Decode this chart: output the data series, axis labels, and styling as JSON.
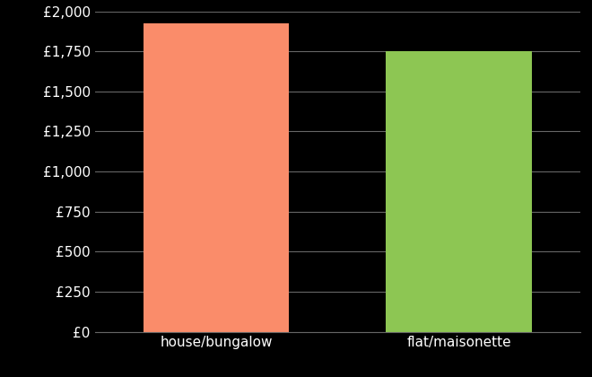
{
  "categories": [
    "house/bungalow",
    "flat/maisonette"
  ],
  "values": [
    1925,
    1750
  ],
  "bar_colors": [
    "#FA8C6A",
    "#8DC653"
  ],
  "background_color": "#000000",
  "text_color": "#ffffff",
  "grid_color": "#666666",
  "ylim": [
    0,
    2000
  ],
  "yticks": [
    0,
    250,
    500,
    750,
    1000,
    1250,
    1500,
    1750,
    2000
  ],
  "figsize": [
    6.6,
    4.2
  ],
  "dpi": 100,
  "tick_fontsize": 11,
  "label_fontsize": 11
}
